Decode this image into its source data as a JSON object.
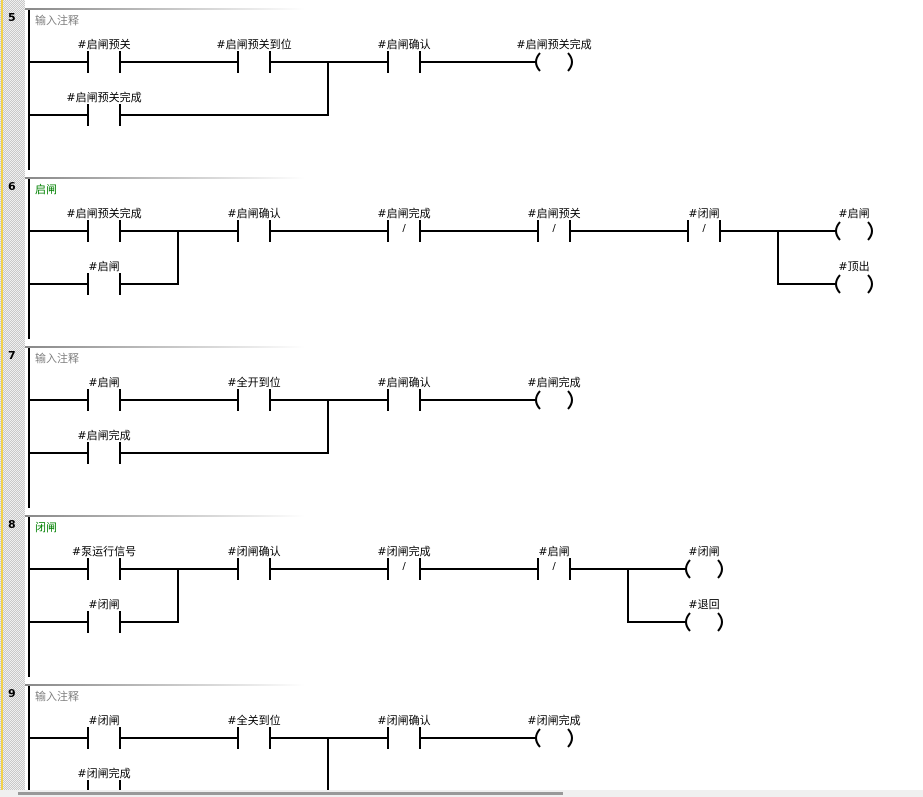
{
  "colors": {
    "comment_default": "#808080",
    "comment_set": "#008000",
    "wire": "#000000",
    "gutter_accent": "#f2d24a"
  },
  "networks": [
    {
      "number": "5",
      "comment": "输入注释",
      "comment_style": "default",
      "row1": [
        {
          "type": "NO",
          "label": "#启闸预关",
          "col": 0
        },
        {
          "type": "NO",
          "label": "#启闸预关到位",
          "col": 1
        },
        {
          "type": "NO",
          "label": "#启闸确认",
          "col": 2
        },
        {
          "type": "coil",
          "label": "#启闸预关完成",
          "col": 3
        }
      ],
      "input_branch": {
        "contact": {
          "type": "NO",
          "label": "#启闸预关完成",
          "col": 0
        },
        "join_after_col": 1
      },
      "output_branch": null
    },
    {
      "number": "6",
      "comment": "启闸",
      "comment_style": "set",
      "row1": [
        {
          "type": "NO",
          "label": "#启闸预关完成",
          "col": 0
        },
        {
          "type": "NO",
          "label": "#启闸确认",
          "col": 1
        },
        {
          "type": "NC",
          "label": "#启闸完成",
          "col": 2
        },
        {
          "type": "NC",
          "label": "#启闸预关",
          "col": 3
        },
        {
          "type": "NC",
          "label": "#闭闸",
          "col": 4
        },
        {
          "type": "coil",
          "label": "#启闸",
          "col": 5
        }
      ],
      "input_branch": {
        "contact": {
          "type": "NO",
          "label": "#启闸",
          "col": 0
        },
        "join_after_col": 0
      },
      "output_branch": {
        "coil": {
          "type": "coil",
          "label": "#顶出",
          "col": 5
        },
        "split_after_col": 4
      }
    },
    {
      "number": "7",
      "comment": "输入注释",
      "comment_style": "default",
      "row1": [
        {
          "type": "NO",
          "label": "#启闸",
          "col": 0
        },
        {
          "type": "NO",
          "label": "#全开到位",
          "col": 1
        },
        {
          "type": "NO",
          "label": "#启闸确认",
          "col": 2
        },
        {
          "type": "coil",
          "label": "#启闸完成",
          "col": 3
        }
      ],
      "input_branch": {
        "contact": {
          "type": "NO",
          "label": "#启闸完成",
          "col": 0
        },
        "join_after_col": 1
      },
      "output_branch": null
    },
    {
      "number": "8",
      "comment": "闭闸",
      "comment_style": "set",
      "row1": [
        {
          "type": "NO",
          "label": "#泵运行信号",
          "col": 0
        },
        {
          "type": "NO",
          "label": "#闭闸确认",
          "col": 1
        },
        {
          "type": "NC",
          "label": "#闭闸完成",
          "col": 2
        },
        {
          "type": "NC",
          "label": "#启闸",
          "col": 3
        },
        {
          "type": "coil",
          "label": "#闭闸",
          "col": 4
        }
      ],
      "input_branch": {
        "contact": {
          "type": "NO",
          "label": "#闭闸",
          "col": 0
        },
        "join_after_col": 0
      },
      "output_branch": {
        "coil": {
          "type": "coil",
          "label": "#退回",
          "col": 4
        },
        "split_after_col": 3
      }
    },
    {
      "number": "9",
      "comment": "输入注释",
      "comment_style": "default",
      "row1": [
        {
          "type": "NO",
          "label": "#闭闸",
          "col": 0
        },
        {
          "type": "NO",
          "label": "#全关到位",
          "col": 1
        },
        {
          "type": "NO",
          "label": "#闭闸确认",
          "col": 2
        },
        {
          "type": "coil",
          "label": "#闭闸完成",
          "col": 3
        }
      ],
      "input_branch": {
        "contact": {
          "type": "NO",
          "label": "#闭闸完成",
          "col": 0
        },
        "join_after_col": 1
      },
      "output_branch": null
    }
  ]
}
